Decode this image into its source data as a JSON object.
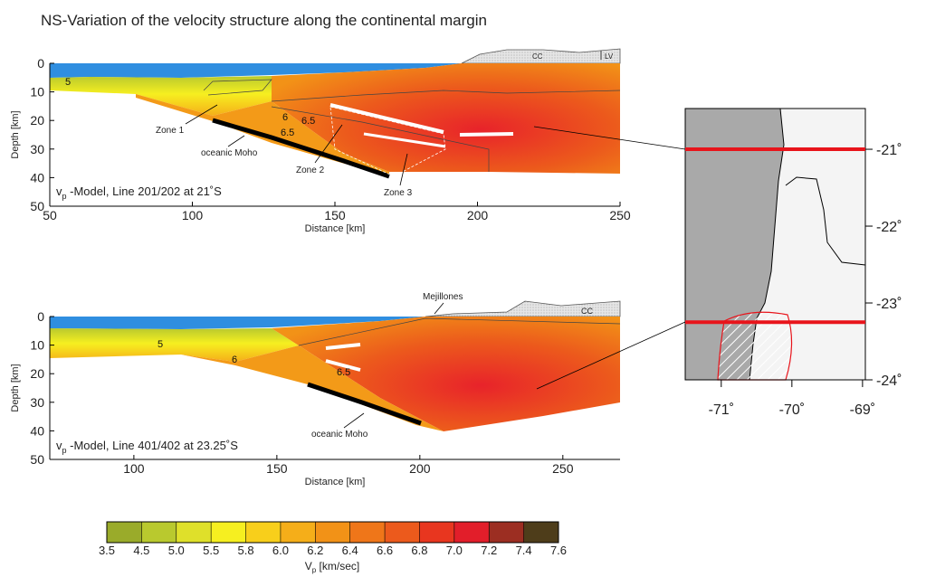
{
  "title": "NS-Variation of the velocity structure along the continental margin",
  "chart_data": [
    {
      "type": "section",
      "xlabel": "Distance [km]",
      "ylabel": "Depth [km]",
      "xlim": [
        50,
        250
      ],
      "xticks": [
        50,
        100,
        150,
        200,
        250
      ],
      "ylim": [
        50,
        0
      ],
      "yticks": [
        0,
        10,
        20,
        30,
        40,
        50
      ],
      "caption_symbol": "v",
      "caption_subscript": "p",
      "caption": " -Model, Line 201/202 at 21˚S",
      "annotations": [
        "5",
        "6",
        "6.5",
        "6.5",
        "Zone 1",
        "Zone 2",
        "Zone 3",
        "oceanic Moho",
        "CC",
        "LV"
      ]
    },
    {
      "type": "section",
      "xlabel": "Distance [km]",
      "ylabel": "Depth [km]",
      "xlim": [
        70.6,
        270
      ],
      "xticks": [
        100,
        150,
        200,
        250
      ],
      "ylim": [
        50,
        0
      ],
      "yticks": [
        0,
        10,
        20,
        30,
        40,
        50
      ],
      "caption_symbol": "v",
      "caption_subscript": "p",
      "caption": " -Model, Line 401/402 at 23.25˚S",
      "annotations": [
        "5",
        "6",
        "6.5",
        "oceanic Moho",
        "Mejillones",
        "CC"
      ]
    },
    {
      "type": "colorbar",
      "label_symbol": "V",
      "label_subscript": "p",
      "label": " [km/sec]",
      "ticks": [
        3.5,
        4.5,
        {
          "value": 5,
          "label": "5.0"
        },
        5.5,
        5.8,
        {
          "value": 6,
          "label": "6.0"
        },
        6.2,
        6.4,
        6.6,
        6.8,
        {
          "value": 7,
          "label": "7.0"
        },
        7.2,
        7.4,
        7.6
      ],
      "colors": [
        "#9aab2a",
        "#b9c92e",
        "#dfe02a",
        "#f6ef20",
        "#f8cf1b",
        "#f5ae19",
        "#f29217",
        "#ef7619",
        "#ec5a1c",
        "#e8361f",
        "#e21e2a",
        "#9c2e22",
        "#4e3d1a"
      ]
    },
    {
      "type": "map",
      "xlim": [
        -71.51,
        -68.96
      ],
      "ylim": [
        -24,
        -20.47
      ],
      "xticks": [
        {
          "value": -71,
          "label": "-71˚"
        },
        {
          "value": -70,
          "label": "-70˚"
        },
        {
          "value": -69,
          "label": "-69˚"
        }
      ],
      "yticks": [
        {
          "value": -21,
          "label": "-21˚"
        },
        {
          "value": -22,
          "label": "-22˚"
        },
        {
          "value": -23,
          "label": "-23˚"
        },
        {
          "value": -24,
          "label": "-24˚"
        }
      ],
      "lines": [
        -21,
        -23.25
      ],
      "line_color": "#e8141b"
    }
  ]
}
